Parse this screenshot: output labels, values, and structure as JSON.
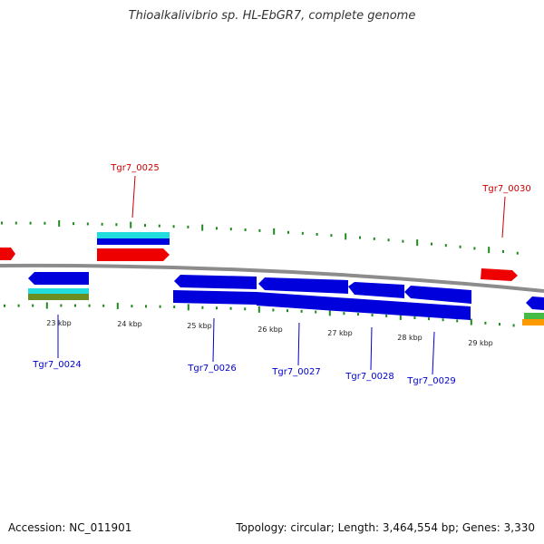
{
  "title": "Thioalkalivibrio sp. HL-EbGR7, complete genome",
  "footer": {
    "accession": "Accession: NC_011901",
    "topology": "Topology: circular; Length: 3,464,554 bp; Genes: 3,330"
  },
  "colors": {
    "backbone": "#8c8c8c",
    "ticks": "#1e8a1e",
    "forward_gene": "#ee0000",
    "reverse_gene": "#0000dd",
    "forward_label": "#cc0000",
    "reverse_label": "#0000cc",
    "cyan_feature": "#22dddd",
    "green_feature": "#44bb44",
    "orange_feature": "#ff9900"
  },
  "kbp_ticks": [
    "23 kbp",
    "24 kbp",
    "25 kbp",
    "26 kbp",
    "27 kbp",
    "28 kbp",
    "29 kbp"
  ],
  "gene_labels": [
    {
      "id": "Tgr7_0025",
      "strand": "forward"
    },
    {
      "id": "Tgr7_0030",
      "strand": "forward"
    },
    {
      "id": "Tgr7_0024",
      "strand": "reverse"
    },
    {
      "id": "Tgr7_0026",
      "strand": "reverse"
    },
    {
      "id": "Tgr7_0027",
      "strand": "reverse"
    },
    {
      "id": "Tgr7_0028",
      "strand": "reverse"
    },
    {
      "id": "Tgr7_0029",
      "strand": "reverse"
    }
  ]
}
